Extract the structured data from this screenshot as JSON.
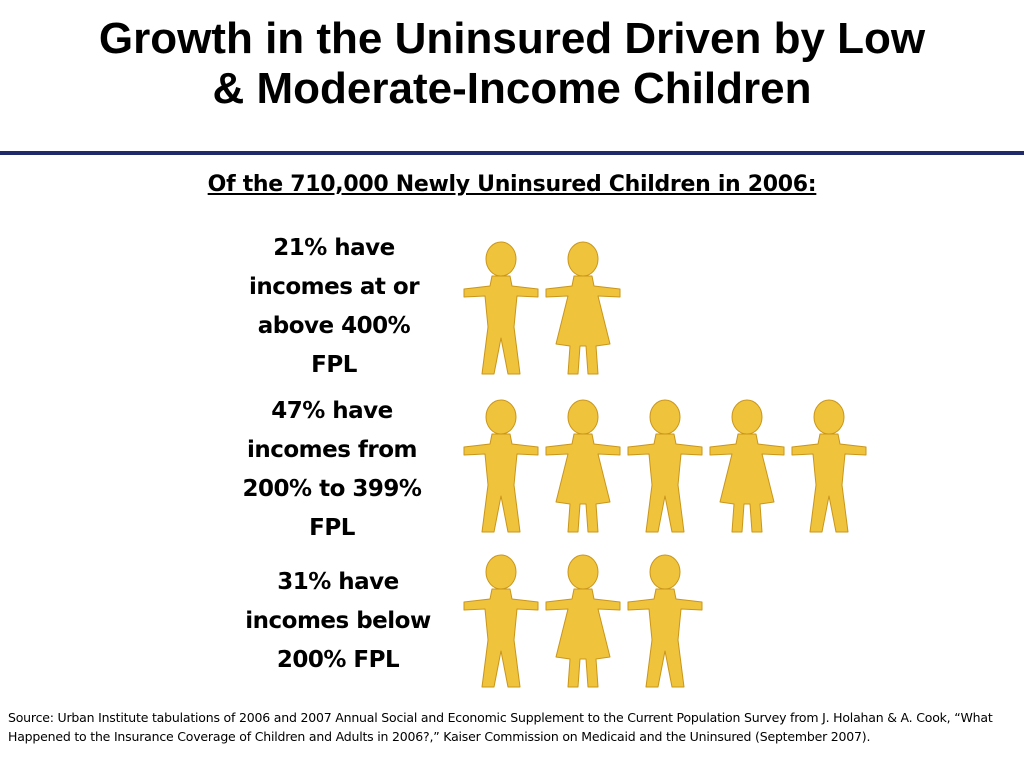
{
  "slide": {
    "title_line1": "Growth in the Uninsured Driven by Low",
    "title_line2": "& Moderate-Income Children",
    "subtitle": "Of the 710,000 Newly Uninsured Children in 2006:",
    "figure_color": "#f0c33c",
    "figure_outline": "#c9961a",
    "rule_color": "#1f2a6b"
  },
  "groups": [
    {
      "label_lines": [
        "21% have",
        "incomes at or",
        "above 400%",
        "FPL"
      ],
      "icons": [
        "boy-figure-icon",
        "girl-figure-icon"
      ]
    },
    {
      "label_lines": [
        "47% have",
        "incomes from",
        "200% to 399%",
        "FPL"
      ],
      "icons": [
        "boy-figure-icon",
        "girl-figure-icon",
        "boy-figure-icon",
        "girl-figure-icon",
        "boy-figure-icon"
      ]
    },
    {
      "label_lines": [
        "31% have",
        "incomes below",
        "200% FPL"
      ],
      "icons": [
        "boy-figure-icon",
        "girl-figure-icon",
        "boy-figure-icon"
      ]
    }
  ],
  "source": "Source:  Urban Institute tabulations of 2006 and 2007 Annual Social and Economic Supplement to the Current Population Survey from J. Holahan & A. Cook, “What Happened to the Insurance Coverage of Children and Adults in 2006?,” Kaiser Commission on Medicaid and the Uninsured (September 2007)."
}
